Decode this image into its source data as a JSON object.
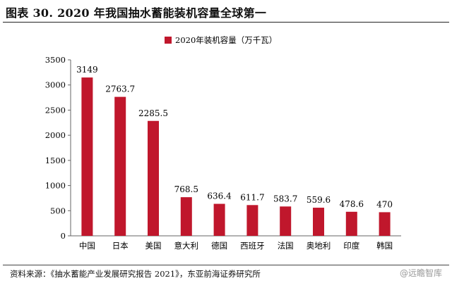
{
  "figure": {
    "title": "图表 30. 2020 年我国抽水蓄能装机容量全球第一",
    "source": "资料来源：《抽水蓄能产业发展研究报告 2021》，东亚前海证券研究所",
    "watermark": "@远瞻智库"
  },
  "chart_data": {
    "type": "bar",
    "categories": [
      "中国",
      "日本",
      "美国",
      "意大利",
      "德国",
      "西班牙",
      "法国",
      "奥地利",
      "印度",
      "韩国"
    ],
    "series": [
      {
        "name": "2020年装机容量（万千瓦）",
        "values": [
          3149,
          2763.7,
          2285.5,
          768.5,
          636.4,
          611.7,
          583.7,
          559.6,
          478.6,
          470
        ]
      }
    ],
    "data_labels": [
      "3149",
      "2763.7",
      "2285.5",
      "768.5",
      "636.4",
      "611.7",
      "583.7",
      "559.6",
      "478.6",
      "470"
    ],
    "yticks": [
      0,
      500,
      1000,
      1500,
      2000,
      2500,
      3000,
      3500
    ],
    "ylim": [
      0,
      3500
    ],
    "legend_position": "top-left",
    "grid": false,
    "colors": {
      "bar": "#C0172C",
      "axis": "#666666"
    }
  }
}
